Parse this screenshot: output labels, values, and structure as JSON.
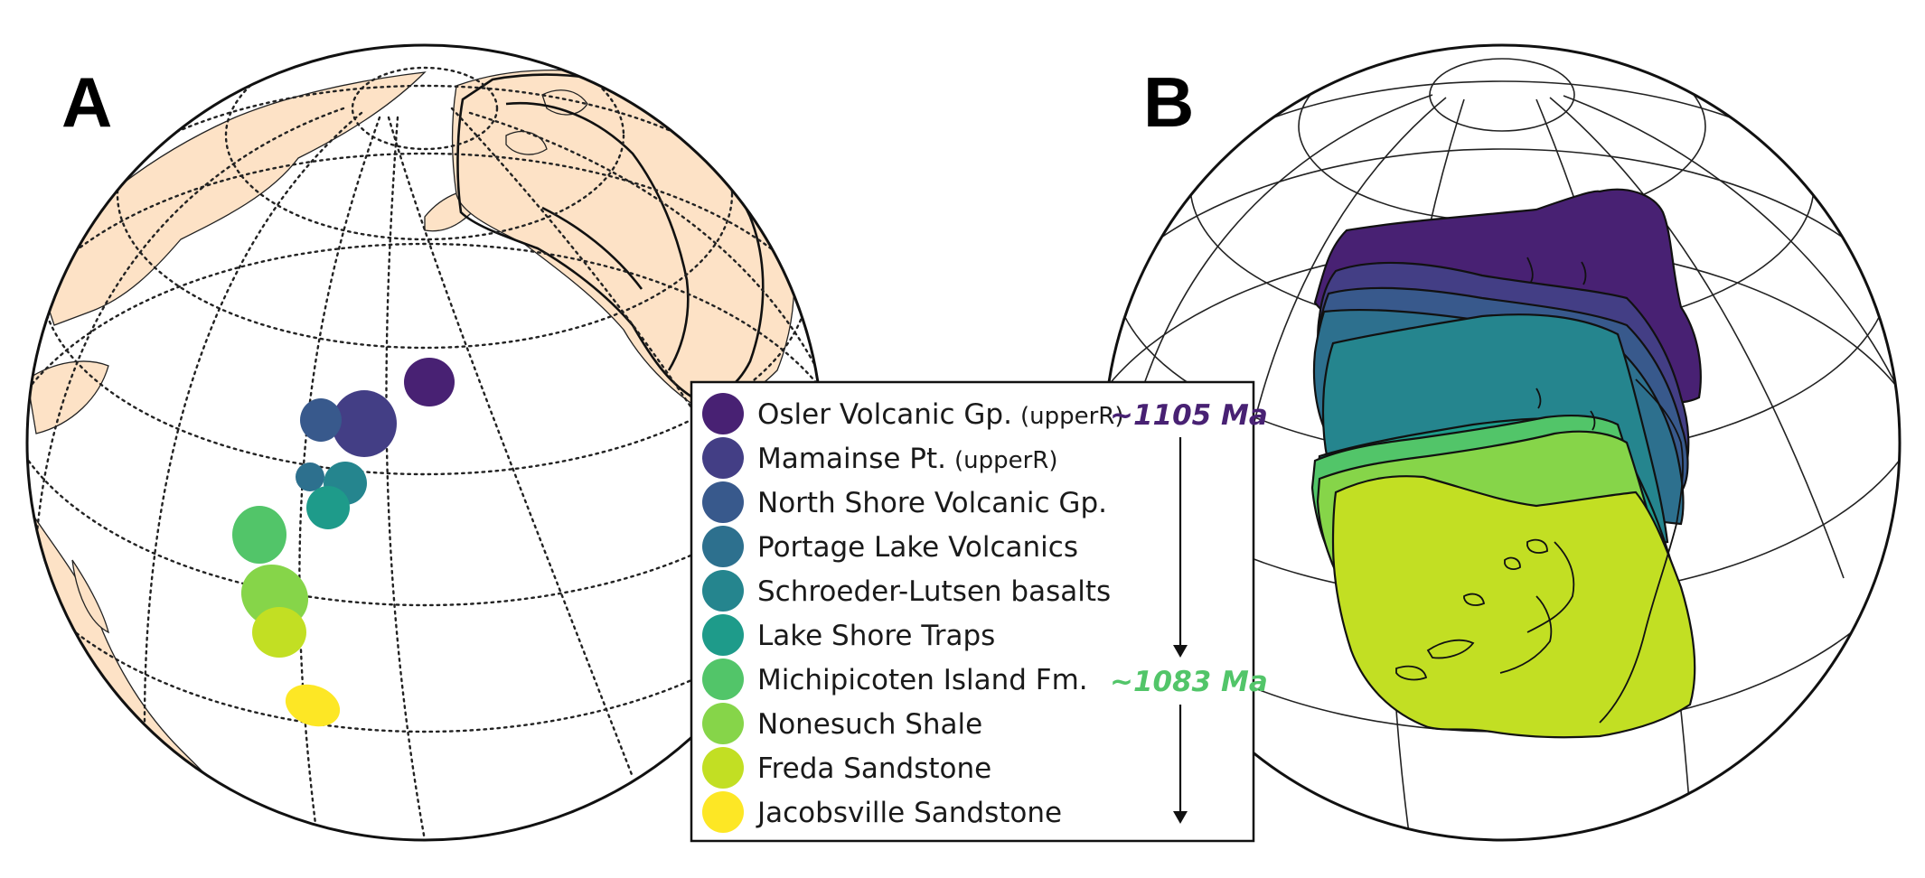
{
  "panels": {
    "a_label": "A",
    "b_label": "B"
  },
  "colors": {
    "land": "#fde2c6",
    "units": [
      "#482173",
      "#433e85",
      "#38598c",
      "#2d708e",
      "#25858e",
      "#1e9b8a",
      "#2ab07f",
      "#52c569",
      "#86d549",
      "#c2df23",
      "#fde725"
    ]
  },
  "legend": {
    "items": [
      {
        "name": "Osler Volcanic Gp.",
        "suffix": "(upperR)",
        "color": "#482173"
      },
      {
        "name": "Mamainse Pt.",
        "suffix": "(upperR)",
        "color": "#433e85"
      },
      {
        "name": "North Shore Volcanic Gp.",
        "suffix": "",
        "color": "#38598c"
      },
      {
        "name": "Portage Lake Volcanics",
        "suffix": "",
        "color": "#2d708e"
      },
      {
        "name": "Schroeder-Lutsen basalts",
        "suffix": "",
        "color": "#25858e"
      },
      {
        "name": "Lake Shore Traps",
        "suffix": "",
        "color": "#1e9b8a"
      },
      {
        "name": "Michipicoten Island Fm.",
        "suffix": "",
        "color": "#52c569"
      },
      {
        "name": "Nonesuch Shale",
        "suffix": "",
        "color": "#86d549"
      },
      {
        "name": "Freda Sandstone",
        "suffix": "",
        "color": "#c2df23"
      },
      {
        "name": "Jacobsville Sandstone",
        "suffix": "",
        "color": "#fde725"
      }
    ],
    "ages": [
      {
        "text": "~1105 Ma",
        "color": "#482173"
      },
      {
        "text": "~1083 Ma",
        "color": "#52c569"
      }
    ]
  }
}
